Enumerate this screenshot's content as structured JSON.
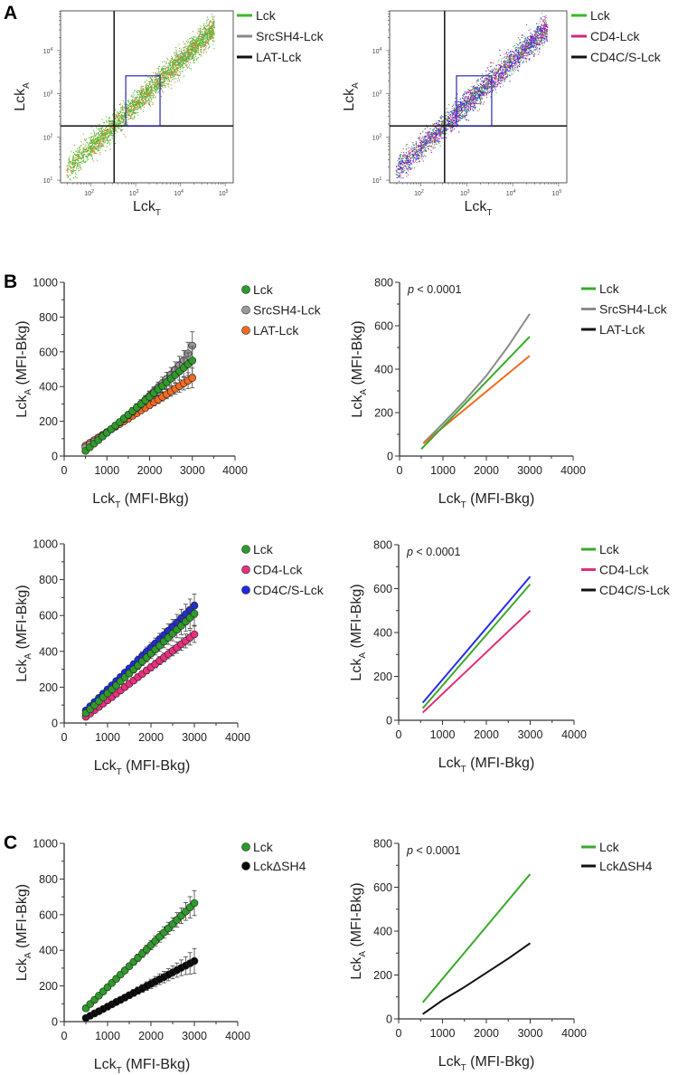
{
  "panels": {
    "a": "A",
    "b": "B",
    "c": "C"
  },
  "flow_legend_left": [
    {
      "label": "Lck",
      "color": "#3cb82a"
    },
    {
      "label": "SrcSH4-Lck",
      "color": "#888888"
    },
    {
      "label": "LAT-Lck",
      "color": "#111111"
    }
  ],
  "flow_legend_right": [
    {
      "label": "Lck",
      "color": "#3cb82a"
    },
    {
      "label": "CD4-Lck",
      "color": "#d4267a"
    },
    {
      "label": "CD4C/S-Lck",
      "color": "#111111"
    }
  ],
  "chart_data": [
    {
      "id": "flow-left",
      "type": "scatter",
      "scale": "log",
      "xlabel": {
        "main": "Lck",
        "sub": "T"
      },
      "ylabel": {
        "main": "Lck",
        "sub": "A"
      },
      "xlim": [
        21,
        151000
      ],
      "ylim": [
        8.7,
        83000
      ],
      "xticks": [
        {
          "base": "10",
          "exp": "2",
          "v": 100
        },
        {
          "base": "10",
          "exp": "3",
          "v": 1000
        },
        {
          "base": "10",
          "exp": "4",
          "v": 10000
        },
        {
          "base": "10",
          "exp": "5",
          "v": 100000
        }
      ],
      "yticks": [
        {
          "base": "10",
          "exp": "1",
          "v": 10
        },
        {
          "base": "10",
          "exp": "2",
          "v": 100
        },
        {
          "base": "10",
          "exp": "3",
          "v": 1000
        },
        {
          "base": "10",
          "exp": "4",
          "v": 10000
        }
      ],
      "gate_x": 330,
      "gate_y": 180,
      "box": {
        "x": [
          600,
          3500
        ],
        "y": [
          180,
          2600
        ]
      },
      "populations": [
        {
          "color": "#44c02a",
          "share": 0.62
        },
        {
          "color": "#f07a2a",
          "share": 0.26
        },
        {
          "color": "#8a8a8a",
          "share": 0.12
        }
      ]
    },
    {
      "id": "flow-right",
      "type": "scatter",
      "scale": "log",
      "xlabel": {
        "main": "Lck",
        "sub": "T"
      },
      "ylabel": {
        "main": "Lck",
        "sub": "A"
      },
      "xlim": [
        21,
        151000
      ],
      "ylim": [
        8.7,
        83000
      ],
      "xticks": [
        {
          "base": "10",
          "exp": "2",
          "v": 100
        },
        {
          "base": "10",
          "exp": "3",
          "v": 1000
        },
        {
          "base": "10",
          "exp": "4",
          "v": 10000
        },
        {
          "base": "10",
          "exp": "5",
          "v": 100000
        }
      ],
      "yticks": [
        {
          "base": "10",
          "exp": "1",
          "v": 10
        },
        {
          "base": "10",
          "exp": "2",
          "v": 100
        },
        {
          "base": "10",
          "exp": "3",
          "v": 1000
        },
        {
          "base": "10",
          "exp": "4",
          "v": 10000
        }
      ],
      "gate_x": 330,
      "gate_y": 180,
      "box": {
        "x": [
          600,
          3500
        ],
        "y": [
          180,
          2600
        ]
      },
      "populations": [
        {
          "color": "#2a2ae8",
          "share": 0.4
        },
        {
          "color": "#e0268a",
          "share": 0.33
        },
        {
          "color": "#44c02a",
          "share": 0.27
        }
      ]
    },
    {
      "id": "b1-scatter",
      "type": "scatter",
      "xlim": [
        0,
        4000
      ],
      "ylim": [
        0,
        1000
      ],
      "xticks": [
        "0",
        "1000",
        "2000",
        "3000",
        "4000"
      ],
      "yticks": [
        "0",
        "200",
        "400",
        "600",
        "800",
        "1000"
      ],
      "xlabel": {
        "main": "Lck",
        "sub": "T",
        "rest": " (MFI-Bkg)"
      },
      "ylabel": {
        "main": "Lck",
        "sub": "A",
        "rest": " (MFI-Bkg)"
      },
      "x": [
        500,
        600,
        700,
        800,
        900,
        1000,
        1100,
        1200,
        1300,
        1400,
        1500,
        1600,
        1700,
        1800,
        1900,
        2000,
        2100,
        2200,
        2300,
        2400,
        2500,
        2600,
        2700,
        2800,
        2900,
        3000
      ],
      "err": [
        5,
        6,
        7,
        8,
        9,
        10,
        12,
        13,
        14,
        16,
        18,
        20,
        22,
        24,
        26,
        28,
        30,
        32,
        35,
        38,
        40,
        45,
        50,
        55,
        65,
        80
      ],
      "series": [
        {
          "name": "LAT-Lck",
          "color": "#f26b21",
          "y": [
            60,
            76,
            91,
            107,
            122,
            138,
            154,
            169,
            185,
            200,
            216,
            232,
            247,
            263,
            278,
            294,
            310,
            325,
            341,
            356,
            372,
            388,
            403,
            419,
            434,
            450
          ]
        },
        {
          "name": "SrcSH4-Lck",
          "color": "#9a9a9a",
          "y": [
            50,
            66,
            83,
            100,
            118,
            136,
            155,
            174,
            194,
            214,
            235,
            256,
            278,
            300,
            323,
            346,
            370,
            394,
            419,
            444,
            470,
            497,
            524,
            552,
            590,
            635
          ]
        },
        {
          "name": "Lck",
          "color": "#2f9a2a",
          "y": [
            30,
            51,
            72,
            92,
            113,
            134,
            155,
            176,
            196,
            217,
            238,
            259,
            280,
            300,
            321,
            342,
            363,
            384,
            404,
            425,
            446,
            467,
            488,
            508,
            529,
            550
          ]
        }
      ],
      "legend": [
        {
          "name": "Lck",
          "color": "#2f9a2a"
        },
        {
          "name": "SrcSH4-Lck",
          "color": "#9a9a9a"
        },
        {
          "name": "LAT-Lck",
          "color": "#f26b21"
        }
      ]
    },
    {
      "id": "b1-fit",
      "type": "line",
      "xlim": [
        0,
        4000
      ],
      "ylim": [
        0,
        800
      ],
      "pvalue": "p < 0.0001",
      "xticks": [
        "0",
        "1000",
        "2000",
        "3000",
        "4000"
      ],
      "yticks": [
        "0",
        "200",
        "400",
        "600",
        "800"
      ],
      "xlabel": {
        "main": "Lck",
        "sub": "T",
        "rest": "  (MFI-Bkg)"
      },
      "ylabel": {
        "main": "Lck",
        "sub": "A",
        "rest": " (MFI-Bkg)"
      },
      "series": [
        {
          "name": "SrcSH4-Lck",
          "color": "#8c8c8c",
          "x": [
            550,
            1000,
            1500,
            2000,
            2500,
            3000
          ],
          "y": [
            60,
            150,
            255,
            370,
            505,
            655
          ]
        },
        {
          "name": "LAT-Lck",
          "color": "#f26b21",
          "x": [
            550,
            3000
          ],
          "y": [
            58,
            462
          ]
        },
        {
          "name": "Lck",
          "color": "#3aaa2c",
          "x": [
            500,
            3000
          ],
          "y": [
            32,
            550
          ]
        }
      ],
      "legend": [
        {
          "name": "Lck",
          "color": "#3aaa2c"
        },
        {
          "name": "SrcSH4-Lck",
          "color": "#8c8c8c"
        },
        {
          "name": "LAT-Lck",
          "color": "#111111"
        }
      ]
    },
    {
      "id": "b2-scatter",
      "type": "scatter",
      "xlim": [
        0,
        4000
      ],
      "ylim": [
        0,
        1000
      ],
      "xticks": [
        "0",
        "1000",
        "2000",
        "3000",
        "4000"
      ],
      "yticks": [
        "0",
        "200",
        "400",
        "600",
        "800",
        "1000"
      ],
      "xlabel": {
        "main": "Lck",
        "sub": "T",
        "rest": " (MFI-Bkg)"
      },
      "ylabel": {
        "main": "Lck",
        "sub": "A",
        "rest": " (MFI-Bkg)"
      },
      "x": [
        500,
        600,
        700,
        800,
        900,
        1000,
        1100,
        1200,
        1300,
        1400,
        1500,
        1600,
        1700,
        1800,
        1900,
        2000,
        2100,
        2200,
        2300,
        2400,
        2500,
        2600,
        2700,
        2800,
        2900,
        3000
      ],
      "err": [
        5,
        6,
        7,
        8,
        9,
        10,
        12,
        13,
        14,
        16,
        18,
        20,
        22,
        24,
        26,
        28,
        30,
        32,
        35,
        38,
        40,
        45,
        50,
        55,
        60,
        65
      ],
      "series": [
        {
          "name": "CD4-Lck",
          "color": "#e8307e",
          "y": [
            35,
            53,
            72,
            90,
            109,
            127,
            145,
            164,
            182,
            201,
            219,
            237,
            256,
            274,
            293,
            311,
            329,
            348,
            366,
            385,
            403,
            421,
            440,
            458,
            477,
            495
          ]
        },
        {
          "name": "CD4C/S-Lck",
          "color": "#1c2ae6",
          "y": [
            70,
            93,
            117,
            140,
            164,
            187,
            210,
            234,
            257,
            281,
            304,
            327,
            351,
            374,
            398,
            421,
            444,
            468,
            491,
            515,
            538,
            561,
            585,
            608,
            632,
            655
          ]
        },
        {
          "name": "Lck",
          "color": "#2f9a2a",
          "y": [
            55,
            77,
            99,
            122,
            144,
            166,
            188,
            210,
            233,
            255,
            277,
            299,
            321,
            344,
            366,
            388,
            410,
            432,
            455,
            477,
            499,
            521,
            543,
            566,
            588,
            610
          ]
        }
      ],
      "legend": [
        {
          "name": "Lck",
          "color": "#2f9a2a"
        },
        {
          "name": "CD4-Lck",
          "color": "#e8307e"
        },
        {
          "name": "CD4C/S-Lck",
          "color": "#1c2ae6"
        }
      ]
    },
    {
      "id": "b2-fit",
      "type": "line",
      "xlim": [
        0,
        4000
      ],
      "ylim": [
        0,
        800
      ],
      "pvalue": "p < 0.0001",
      "xticks": [
        "0",
        "1000",
        "2000",
        "3000",
        "4000"
      ],
      "yticks": [
        "0",
        "200",
        "400",
        "600",
        "800"
      ],
      "xlabel": {
        "main": "Lck",
        "sub": "T",
        "rest": "  (MFI-Bkg)"
      },
      "ylabel": {
        "main": "Lck",
        "sub": "A",
        "rest": " (MFI-Bkg)"
      },
      "series": [
        {
          "name": "CD4-Lck",
          "color": "#e0307a",
          "x": [
            550,
            3000
          ],
          "y": [
            35,
            500
          ]
        },
        {
          "name": "Lck",
          "color": "#3aaa2c",
          "x": [
            550,
            3000
          ],
          "y": [
            55,
            620
          ]
        },
        {
          "name": "CD4C/S-Lck",
          "color": "#2a2aee",
          "x": [
            550,
            3000
          ],
          "y": [
            80,
            655
          ]
        }
      ],
      "legend": [
        {
          "name": "Lck",
          "color": "#3aaa2c"
        },
        {
          "name": "CD4-Lck",
          "color": "#e0307a"
        },
        {
          "name": "CD4C/S-Lck",
          "color": "#111111"
        }
      ]
    },
    {
      "id": "c-scatter",
      "type": "scatter",
      "xlim": [
        0,
        4000
      ],
      "ylim": [
        0,
        1000
      ],
      "xticks": [
        "0",
        "1000",
        "2000",
        "3000",
        "4000"
      ],
      "yticks": [
        "0",
        "200",
        "400",
        "600",
        "800",
        "1000"
      ],
      "xlabel": {
        "main": "Lck",
        "sub": "T",
        "rest": " (MFI-Bkg)"
      },
      "ylabel": {
        "main": "Lck",
        "sub": "A",
        "rest": " (MFI-Bkg)"
      },
      "x": [
        500,
        600,
        700,
        800,
        900,
        1000,
        1100,
        1200,
        1300,
        1400,
        1500,
        1600,
        1700,
        1800,
        1900,
        2000,
        2100,
        2200,
        2300,
        2400,
        2500,
        2600,
        2700,
        2800,
        2900,
        3000
      ],
      "err": [
        5,
        6,
        7,
        8,
        9,
        10,
        11,
        12,
        13,
        14,
        16,
        18,
        20,
        22,
        24,
        26,
        28,
        30,
        32,
        34,
        36,
        40,
        44,
        50,
        60,
        70
      ],
      "series": [
        {
          "name": "LckΔSH4",
          "color": "#0a0a0a",
          "y": [
            20,
            33,
            46,
            58,
            71,
            84,
            97,
            110,
            122,
            135,
            148,
            161,
            174,
            186,
            199,
            212,
            225,
            238,
            250,
            263,
            276,
            289,
            302,
            314,
            327,
            340
          ]
        },
        {
          "name": "Lck",
          "color": "#2f9a2a",
          "y": [
            75,
            99,
            122,
            146,
            169,
            193,
            217,
            240,
            264,
            287,
            311,
            335,
            358,
            382,
            405,
            429,
            453,
            476,
            500,
            523,
            547,
            571,
            594,
            618,
            641,
            665
          ]
        }
      ],
      "legend": [
        {
          "name": "Lck",
          "color": "#2f9a2a"
        },
        {
          "name": "LckΔSH4",
          "color": "#0a0a0a"
        }
      ]
    },
    {
      "id": "c-fit",
      "type": "line",
      "xlim": [
        0,
        4000
      ],
      "ylim": [
        0,
        800
      ],
      "pvalue": "p < 0.0001",
      "xticks": [
        "0",
        "1000",
        "2000",
        "3000",
        "4000"
      ],
      "yticks": [
        "0",
        "200",
        "400",
        "600",
        "800"
      ],
      "xlabel": {
        "main": "Lck",
        "sub": "T",
        "rest": " (MFI-Bkg)"
      },
      "ylabel": {
        "main": "Lck",
        "sub": "A",
        "rest": " (MFI-Bkg)"
      },
      "series": [
        {
          "name": "Lck",
          "color": "#3aaa2c",
          "x": [
            550,
            3000
          ],
          "y": [
            75,
            660
          ]
        },
        {
          "name": "LckΔSH4",
          "color": "#111111",
          "x": [
            550,
            1000,
            1500,
            2000,
            2500,
            3000
          ],
          "y": [
            22,
            85,
            145,
            210,
            275,
            345
          ]
        }
      ],
      "legend": [
        {
          "name": "Lck",
          "color": "#3aaa2c"
        },
        {
          "name": "LckΔSH4",
          "color": "#111111"
        }
      ]
    }
  ]
}
